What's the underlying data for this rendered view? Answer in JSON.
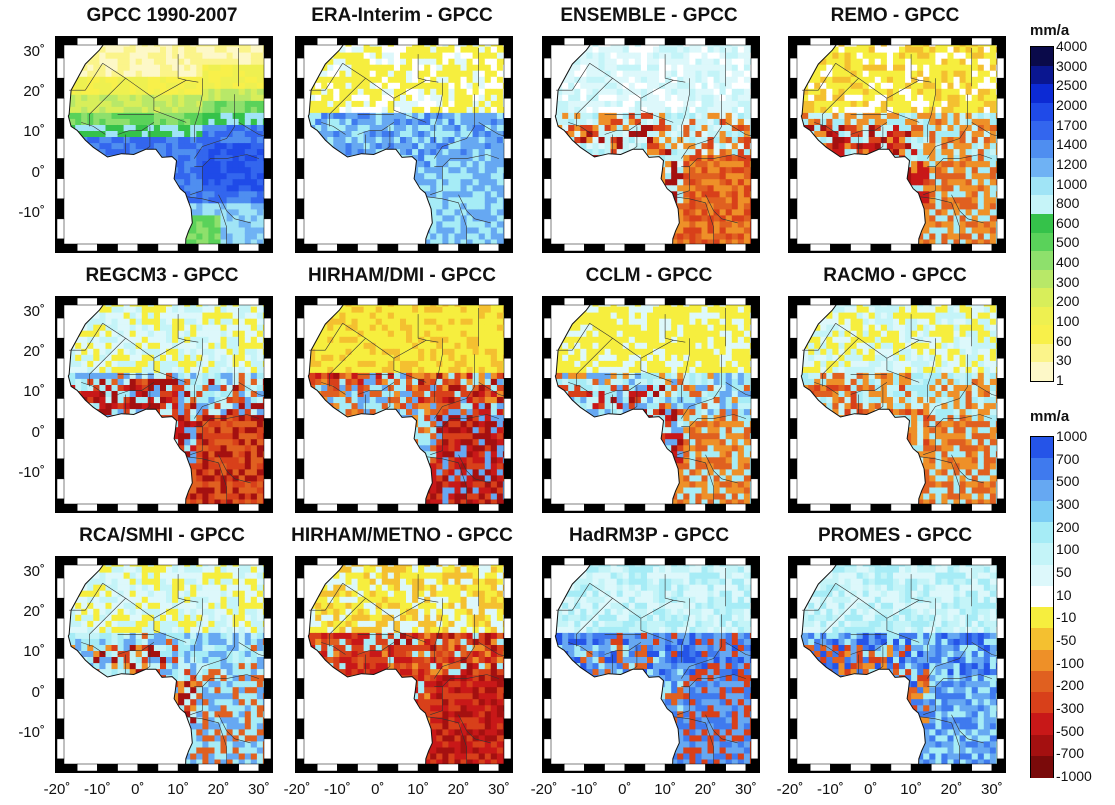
{
  "panels": [
    {
      "title": "GPCC 1990-2007",
      "kind": "absolute"
    },
    {
      "title": "ERA-Interim - GPCC",
      "kind": "era"
    },
    {
      "title": "ENSEMBLE - GPCC",
      "kind": "ensemble"
    },
    {
      "title": "REMO - GPCC",
      "kind": "remo"
    },
    {
      "title": "REGCM3 - GPCC",
      "kind": "regcm"
    },
    {
      "title": "HIRHAM/DMI - GPCC",
      "kind": "hirdmi"
    },
    {
      "title": "CCLM - GPCC",
      "kind": "cclm"
    },
    {
      "title": "RACMO - GPCC",
      "kind": "racmo"
    },
    {
      "title": "RCA/SMHI - GPCC",
      "kind": "rca"
    },
    {
      "title": "HIRHAM/METNO - GPCC",
      "kind": "hirmet"
    },
    {
      "title": "HadRM3P - GPCC",
      "kind": "hadrm"
    },
    {
      "title": "PROMES - GPCC",
      "kind": "promes"
    }
  ],
  "y_axis_labels": [
    "30˚",
    "20˚",
    "10˚",
    "0˚",
    "-10˚"
  ],
  "x_axis_labels": [
    "-20˚",
    "-10˚",
    "0˚",
    "10˚",
    "20˚",
    "30˚"
  ],
  "colorbar_absolute": {
    "unit": "mm/a",
    "labels": [
      "4000",
      "3000",
      "2500",
      "2000",
      "1700",
      "1400",
      "1200",
      "1000",
      "800",
      "600",
      "500",
      "400",
      "300",
      "200",
      "100",
      "60",
      "30",
      "1"
    ],
    "colors": [
      "#0a0a4a",
      "#0a1690",
      "#0c2ad4",
      "#1f4ae8",
      "#3366ee",
      "#4f8ef0",
      "#6fb2f4",
      "#a0e4f6",
      "#c6f4f8",
      "#35c24a",
      "#5ad25a",
      "#8ee06c",
      "#b8e868",
      "#d8ee5a",
      "#eef050",
      "#f8f04a",
      "#fbf48a",
      "#fdf8c8"
    ]
  },
  "colorbar_difference": {
    "unit": "mm/a",
    "labels": [
      "1000",
      "700",
      "500",
      "300",
      "200",
      "100",
      "50",
      "10",
      "-10",
      "-50",
      "-100",
      "-200",
      "-300",
      "-500",
      "-700",
      "-1000"
    ],
    "colors": [
      "#2554e8",
      "#3f7aee",
      "#66a8f2",
      "#7ccdf4",
      "#a6ecf6",
      "#c4f4f8",
      "#ddf8fb",
      "#ffffff",
      "#f6ee3e",
      "#f4c030",
      "#ee9028",
      "#e06020",
      "#d8401a",
      "#c81818",
      "#a41010",
      "#7a0a0a"
    ]
  }
}
